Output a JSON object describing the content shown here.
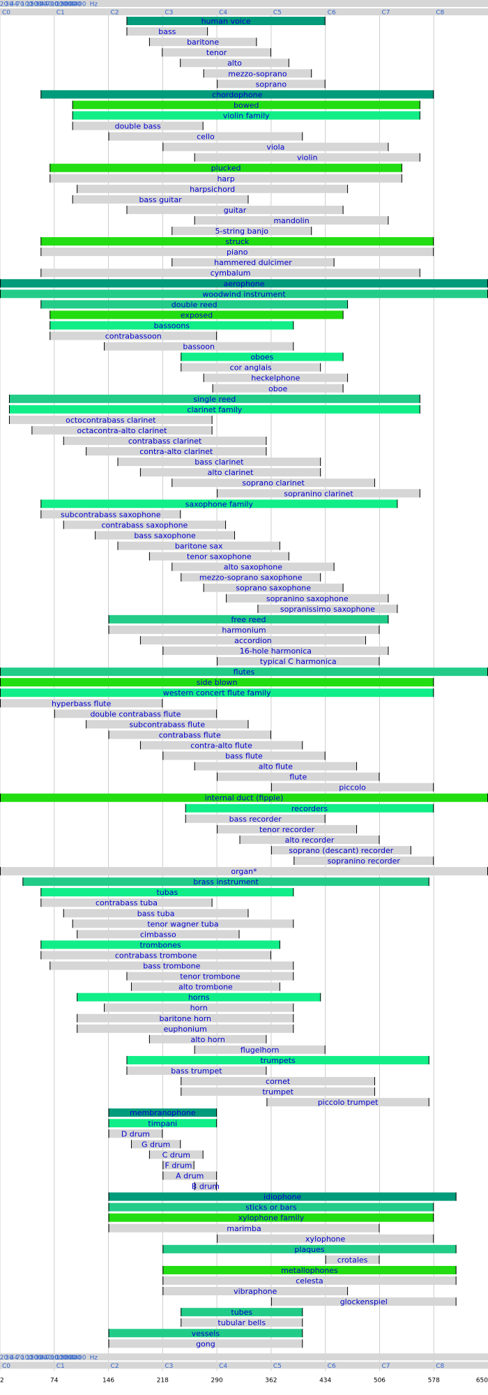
{
  "chart_data": {
    "type": "bar",
    "subtype": "horizontal-range",
    "title": "",
    "xlabel": "",
    "ylabel": "",
    "x_scale": "semitone index (log frequency)",
    "xlim": [
      2,
      650
    ],
    "hz_ticks": [
      "20",
      "30",
      "44",
      "70",
      "100",
      "150",
      "200",
      "300",
      "440",
      "700",
      "1000",
      "1500",
      "2000",
      "3000",
      "4400"
    ],
    "hz_unit": "Hz",
    "octave_labels": [
      "C0",
      "C1",
      "C2",
      "C3",
      "C4",
      "C5",
      "C6",
      "C7",
      "C8"
    ],
    "bottom_ticks": [
      "2",
      "74",
      "146",
      "218",
      "290",
      "362",
      "434",
      "506",
      "578",
      "650"
    ],
    "grid": true,
    "colors": {
      "family": "#009b7a",
      "group": "#22dd11",
      "subfamily": "#11ee88",
      "class": "#22cc88",
      "instrument": "#d6d6d6",
      "label": "#0000cc",
      "axis_strip": "#d6d6d6",
      "axis_text": "#3366cc",
      "gridline": "#cccccc"
    },
    "rows": [
      {
        "name": "human voice",
        "low": 170,
        "high": 434,
        "cat": "family"
      },
      {
        "name": "bass",
        "low": 170,
        "high": 278,
        "cat": "instrument"
      },
      {
        "name": "baritone",
        "low": 200,
        "high": 343,
        "cat": "instrument"
      },
      {
        "name": "tenor",
        "low": 217,
        "high": 362,
        "cat": "instrument"
      },
      {
        "name": "alto",
        "low": 241,
        "high": 386,
        "cat": "instrument"
      },
      {
        "name": "mezzo-soprano",
        "low": 272,
        "high": 416,
        "cat": "instrument"
      },
      {
        "name": "soprano",
        "low": 290,
        "high": 434,
        "cat": "instrument"
      },
      {
        "name": "chordophone",
        "low": 56,
        "high": 578,
        "cat": "family"
      },
      {
        "name": "bowed",
        "low": 98,
        "high": 560,
        "cat": "group"
      },
      {
        "name": "violin family",
        "low": 98,
        "high": 560,
        "cat": "subfamily"
      },
      {
        "name": "double bass",
        "low": 98,
        "high": 272,
        "cat": "instrument"
      },
      {
        "name": "cello",
        "low": 146,
        "high": 404,
        "cat": "instrument"
      },
      {
        "name": "viola",
        "low": 218,
        "high": 518,
        "cat": "instrument"
      },
      {
        "name": "violin",
        "low": 260,
        "high": 560,
        "cat": "instrument"
      },
      {
        "name": "plucked",
        "low": 68,
        "high": 536,
        "cat": "group"
      },
      {
        "name": "harp",
        "low": 68,
        "high": 536,
        "cat": "instrument"
      },
      {
        "name": "harpsichord",
        "low": 104,
        "high": 464,
        "cat": "instrument"
      },
      {
        "name": "bass guitar",
        "low": 98,
        "high": 332,
        "cat": "instrument"
      },
      {
        "name": "guitar",
        "low": 170,
        "high": 458,
        "cat": "instrument"
      },
      {
        "name": "mandolin",
        "low": 260,
        "high": 518,
        "cat": "instrument"
      },
      {
        "name": "5-string banjo",
        "low": 230,
        "high": 416,
        "cat": "instrument"
      },
      {
        "name": "struck",
        "low": 56,
        "high": 578,
        "cat": "group"
      },
      {
        "name": "piano",
        "low": 56,
        "high": 578,
        "cat": "instrument"
      },
      {
        "name": "hammered dulcimer",
        "low": 230,
        "high": 446,
        "cat": "instrument"
      },
      {
        "name": "cymbalum",
        "low": 56,
        "high": 560,
        "cat": "instrument"
      },
      {
        "name": "aerophone",
        "low": 2,
        "high": 650,
        "cat": "family"
      },
      {
        "name": "woodwind instrument",
        "low": 2,
        "high": 650,
        "cat": "class"
      },
      {
        "name": "double reed",
        "low": 56,
        "high": 464,
        "cat": "class"
      },
      {
        "name": "exposed",
        "low": 68,
        "high": 458,
        "cat": "group"
      },
      {
        "name": "bassoons",
        "low": 68,
        "high": 392,
        "cat": "subfamily"
      },
      {
        "name": "contrabassoon",
        "low": 68,
        "high": 290,
        "cat": "instrument"
      },
      {
        "name": "bassoon",
        "low": 140,
        "high": 392,
        "cat": "instrument"
      },
      {
        "name": "oboes",
        "low": 242,
        "high": 458,
        "cat": "subfamily"
      },
      {
        "name": "cor anglais",
        "low": 242,
        "high": 428,
        "cat": "instrument"
      },
      {
        "name": "heckelphone",
        "low": 272,
        "high": 464,
        "cat": "instrument"
      },
      {
        "name": "oboe",
        "low": 284,
        "high": 458,
        "cat": "instrument"
      },
      {
        "name": "single reed",
        "low": 14,
        "high": 560,
        "cat": "class"
      },
      {
        "name": "clarinet family",
        "low": 14,
        "high": 560,
        "cat": "subfamily"
      },
      {
        "name": "octocontrabass clarinet",
        "low": 14,
        "high": 284,
        "cat": "instrument"
      },
      {
        "name": "octacontra-alto clarinet",
        "low": 44,
        "high": 284,
        "cat": "instrument"
      },
      {
        "name": "contrabass clarinet",
        "low": 86,
        "high": 356,
        "cat": "instrument"
      },
      {
        "name": "contra-alto clarinet",
        "low": 116,
        "high": 356,
        "cat": "instrument"
      },
      {
        "name": "bass clarinet",
        "low": 158,
        "high": 428,
        "cat": "instrument"
      },
      {
        "name": "alto clarinet",
        "low": 188,
        "high": 428,
        "cat": "instrument"
      },
      {
        "name": "soprano clarinet",
        "low": 230,
        "high": 500,
        "cat": "instrument"
      },
      {
        "name": "sopranino clarinet",
        "low": 290,
        "high": 560,
        "cat": "instrument"
      },
      {
        "name": "saxophone family",
        "low": 56,
        "high": 530,
        "cat": "subfamily"
      },
      {
        "name": "subcontrabass saxophone",
        "low": 56,
        "high": 242,
        "cat": "instrument"
      },
      {
        "name": "contrabass saxophone",
        "low": 86,
        "high": 302,
        "cat": "instrument"
      },
      {
        "name": "bass saxophone",
        "low": 128,
        "high": 314,
        "cat": "instrument"
      },
      {
        "name": "baritone sax",
        "low": 158,
        "high": 374,
        "cat": "instrument"
      },
      {
        "name": "tenor saxophone",
        "low": 200,
        "high": 386,
        "cat": "instrument"
      },
      {
        "name": "alto saxophone",
        "low": 230,
        "high": 446,
        "cat": "instrument"
      },
      {
        "name": "mezzo-soprano saxophone",
        "low": 242,
        "high": 428,
        "cat": "instrument"
      },
      {
        "name": "soprano saxophone",
        "low": 272,
        "high": 458,
        "cat": "instrument"
      },
      {
        "name": "sopranino saxophone",
        "low": 302,
        "high": 518,
        "cat": "instrument"
      },
      {
        "name": "sopranissimo saxophone",
        "low": 344,
        "high": 530,
        "cat": "instrument"
      },
      {
        "name": "free reed",
        "low": 146,
        "high": 518,
        "cat": "class"
      },
      {
        "name": "harmonium",
        "low": 146,
        "high": 506,
        "cat": "instrument"
      },
      {
        "name": "accordion",
        "low": 188,
        "high": 488,
        "cat": "instrument"
      },
      {
        "name": "16-hole harmonica",
        "low": 218,
        "high": 518,
        "cat": "instrument"
      },
      {
        "name": "typical C harmonica",
        "low": 290,
        "high": 506,
        "cat": "instrument"
      },
      {
        "name": "flutes",
        "low": 2,
        "high": 650,
        "cat": "class"
      },
      {
        "name": "side blown",
        "low": 2,
        "high": 578,
        "cat": "group"
      },
      {
        "name": "western concert flute family",
        "low": 2,
        "high": 578,
        "cat": "subfamily"
      },
      {
        "name": "hyperbass flute",
        "low": 2,
        "high": 218,
        "cat": "instrument"
      },
      {
        "name": "double contrabass flute",
        "low": 74,
        "high": 290,
        "cat": "instrument"
      },
      {
        "name": "subcontrabass flute",
        "low": 116,
        "high": 332,
        "cat": "instrument"
      },
      {
        "name": "contrabass flute",
        "low": 146,
        "high": 362,
        "cat": "instrument"
      },
      {
        "name": "contra-alto flute",
        "low": 188,
        "high": 404,
        "cat": "instrument"
      },
      {
        "name": "bass flute",
        "low": 218,
        "high": 434,
        "cat": "instrument"
      },
      {
        "name": "alto flute",
        "low": 260,
        "high": 476,
        "cat": "instrument"
      },
      {
        "name": "flute",
        "low": 290,
        "high": 506,
        "cat": "instrument"
      },
      {
        "name": "piccolo",
        "low": 362,
        "high": 578,
        "cat": "instrument"
      },
      {
        "name": "internal duct (fipple)",
        "low": 2,
        "high": 650,
        "cat": "group"
      },
      {
        "name": "recorders",
        "low": 248,
        "high": 578,
        "cat": "subfamily"
      },
      {
        "name": "bass recorder",
        "low": 248,
        "high": 434,
        "cat": "instrument"
      },
      {
        "name": "tenor recorder",
        "low": 290,
        "high": 476,
        "cat": "instrument"
      },
      {
        "name": "alto recorder",
        "low": 320,
        "high": 506,
        "cat": "instrument"
      },
      {
        "name": "soprano (descant) recorder",
        "low": 362,
        "high": 548,
        "cat": "instrument"
      },
      {
        "name": "sopranino recorder",
        "low": 392,
        "high": 578,
        "cat": "instrument"
      },
      {
        "name": "organ*",
        "low": 2,
        "high": 650,
        "cat": "instrument"
      },
      {
        "name": "brass instrument",
        "low": 32,
        "high": 572,
        "cat": "class"
      },
      {
        "name": "tubas",
        "low": 56,
        "high": 392,
        "cat": "subfamily"
      },
      {
        "name": "contrabass tuba",
        "low": 56,
        "high": 284,
        "cat": "instrument"
      },
      {
        "name": "bass tuba",
        "low": 86,
        "high": 332,
        "cat": "instrument"
      },
      {
        "name": "tenor wagner tuba",
        "low": 98,
        "high": 392,
        "cat": "instrument"
      },
      {
        "name": "cimbasso",
        "low": 104,
        "high": 320,
        "cat": "instrument"
      },
      {
        "name": "trombones",
        "low": 56,
        "high": 374,
        "cat": "subfamily"
      },
      {
        "name": "contrabass trombone",
        "low": 56,
        "high": 362,
        "cat": "instrument"
      },
      {
        "name": "bass trombone",
        "low": 68,
        "high": 392,
        "cat": "instrument"
      },
      {
        "name": "tenor trombone",
        "low": 170,
        "high": 392,
        "cat": "instrument"
      },
      {
        "name": "alto trombone",
        "low": 176,
        "high": 374,
        "cat": "instrument"
      },
      {
        "name": "horns",
        "low": 104,
        "high": 428,
        "cat": "subfamily"
      },
      {
        "name": "horn",
        "low": 140,
        "high": 392,
        "cat": "instrument"
      },
      {
        "name": "baritone horn",
        "low": 104,
        "high": 392,
        "cat": "instrument"
      },
      {
        "name": "euphonium",
        "low": 104,
        "high": 392,
        "cat": "instrument"
      },
      {
        "name": "alto horn",
        "low": 200,
        "high": 356,
        "cat": "instrument"
      },
      {
        "name": "flugelhorn",
        "low": 260,
        "high": 434,
        "cat": "instrument"
      },
      {
        "name": "trumpets",
        "low": 170,
        "high": 572,
        "cat": "subfamily"
      },
      {
        "name": "bass trumpet",
        "low": 170,
        "high": 356,
        "cat": "instrument"
      },
      {
        "name": "cornet",
        "low": 242,
        "high": 500,
        "cat": "instrument"
      },
      {
        "name": "trumpet",
        "low": 242,
        "high": 500,
        "cat": "instrument"
      },
      {
        "name": "piccolo trumpet",
        "low": 356,
        "high": 572,
        "cat": "instrument"
      },
      {
        "name": "membranophone",
        "low": 146,
        "high": 290,
        "cat": "family"
      },
      {
        "name": "timpani",
        "low": 146,
        "high": 290,
        "cat": "subfamily"
      },
      {
        "name": "D drum",
        "low": 146,
        "high": 218,
        "cat": "instrument"
      },
      {
        "name": "G drum",
        "low": 176,
        "high": 242,
        "cat": "instrument"
      },
      {
        "name": "C drum",
        "low": 200,
        "high": 272,
        "cat": "instrument"
      },
      {
        "name": "F drum",
        "low": 218,
        "high": 260,
        "cat": "instrument"
      },
      {
        "name": "A drum",
        "low": 218,
        "high": 290,
        "cat": "instrument"
      },
      {
        "name": "B drum",
        "low": 260,
        "high": 290,
        "cat": "instrument"
      },
      {
        "name": "idiophone",
        "low": 146,
        "high": 608,
        "cat": "family"
      },
      {
        "name": "sticks or bars",
        "low": 146,
        "high": 578,
        "cat": "class"
      },
      {
        "name": "xylophone family",
        "low": 146,
        "high": 578,
        "cat": "group"
      },
      {
        "name": "marimba",
        "low": 146,
        "high": 506,
        "cat": "instrument"
      },
      {
        "name": "xylophone",
        "low": 290,
        "high": 578,
        "cat": "instrument"
      },
      {
        "name": "plaques",
        "low": 218,
        "high": 608,
        "cat": "class"
      },
      {
        "name": "crotales",
        "low": 434,
        "high": 506,
        "cat": "instrument"
      },
      {
        "name": "metallophones",
        "low": 218,
        "high": 608,
        "cat": "group"
      },
      {
        "name": "celesta",
        "low": 218,
        "high": 608,
        "cat": "instrument"
      },
      {
        "name": "vibraphone",
        "low": 218,
        "high": 464,
        "cat": "instrument"
      },
      {
        "name": "glockenspiel",
        "low": 362,
        "high": 608,
        "cat": "instrument"
      },
      {
        "name": "tubes",
        "low": 242,
        "high": 404,
        "cat": "class"
      },
      {
        "name": "tubular bells",
        "low": 242,
        "high": 404,
        "cat": "instrument"
      },
      {
        "name": "vessels",
        "low": 146,
        "high": 404,
        "cat": "class"
      },
      {
        "name": "gong",
        "low": 146,
        "high": 404,
        "cat": "instrument"
      }
    ]
  }
}
